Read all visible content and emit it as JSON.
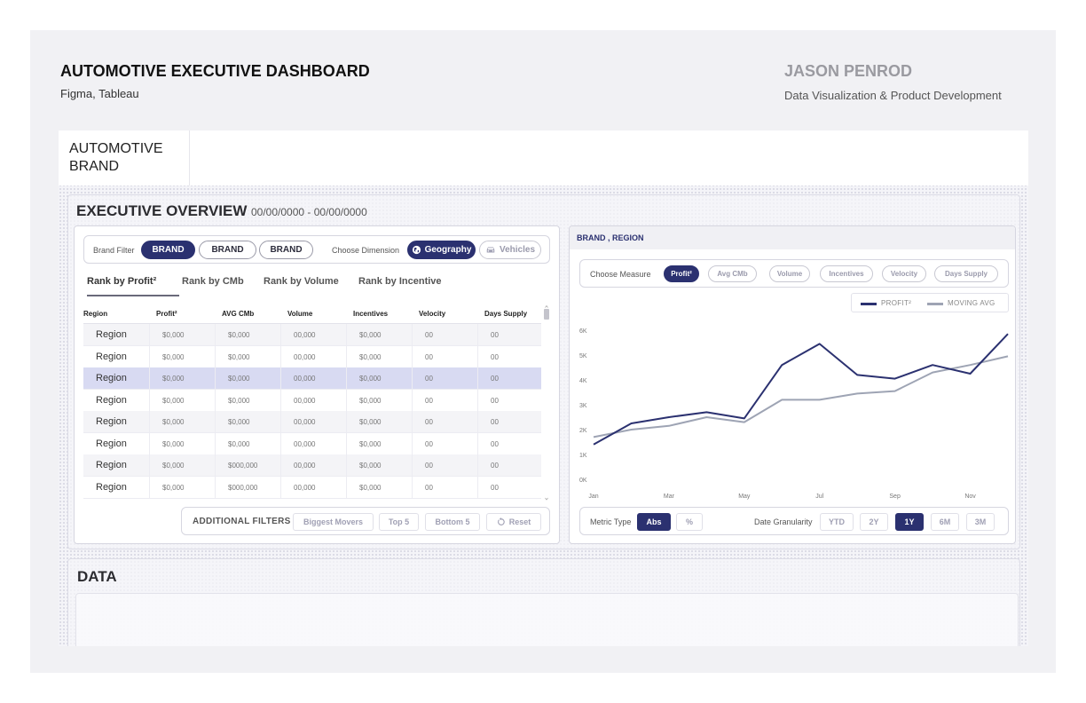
{
  "header": {
    "title": "AUTOMOTIVE EXECUTIVE DASHBOARD",
    "subtitle": "Figma, Tableau",
    "author": "JASON PENROD",
    "author_role": "Data Visualization & Product Development"
  },
  "brand_bar": {
    "label": "AUTOMOTIVE BRAND"
  },
  "overview": {
    "title": "EXECUTIVE OVERVIEW",
    "date_range": "00/00/0000 - 00/00/0000",
    "brand_filter_label": "Brand Filter",
    "brands": [
      "BRAND",
      "BRAND",
      "BRAND"
    ],
    "dimension_label": "Choose Dimension",
    "dimension_geography": "Geography",
    "dimension_vehicles": "Vehicles",
    "rank_tabs": [
      "Rank by Profit²",
      "Rank by CMb",
      "Rank by Volume",
      "Rank by Incentive"
    ],
    "columns": [
      "Region",
      "Profit²",
      "AVG CMb",
      "Volume",
      "Incentives",
      "Velocity",
      "Days Supply"
    ],
    "rows": [
      [
        "Region",
        "$0,000",
        "$0,000",
        "00,000",
        "$0,000",
        "00",
        "00"
      ],
      [
        "Region",
        "$0,000",
        "$0,000",
        "00,000",
        "$0,000",
        "00",
        "00"
      ],
      [
        "Region",
        "$0,000",
        "$0,000",
        "00,000",
        "$0,000",
        "00",
        "00"
      ],
      [
        "Region",
        "$0,000",
        "$0,000",
        "00,000",
        "$0,000",
        "00",
        "00"
      ],
      [
        "Region",
        "$0,000",
        "$0,000",
        "00,000",
        "$0,000",
        "00",
        "00"
      ],
      [
        "Region",
        "$0,000",
        "$0,000",
        "00,000",
        "$0,000",
        "00",
        "00"
      ],
      [
        "Region",
        "$0,000",
        "$000,000",
        "00,000",
        "$0,000",
        "00",
        "00"
      ],
      [
        "Region",
        "$0,000",
        "$000,000",
        "00,000",
        "$0,000",
        "00",
        "00"
      ]
    ],
    "selected_row": 2,
    "additional_filters_label": "ADDITIONAL FILTERS",
    "filter_buttons": {
      "biggest_movers": "Biggest Movers",
      "top5": "Top 5",
      "bottom5": "Bottom 5",
      "reset": "Reset"
    }
  },
  "right_panel": {
    "title": "BRAND , REGION",
    "measure_label": "Choose Measure",
    "measures": [
      "Profit²",
      "Avg CMb",
      "Volume",
      "Incentives",
      "Velocity",
      "Days Supply"
    ],
    "active_measure": 0,
    "metric_type_label": "Metric Type",
    "metric_abs": "Abs",
    "metric_pct": "%",
    "granularity_label": "Date Granularity",
    "granularities": [
      "YTD",
      "2Y",
      "1Y",
      "6M",
      "3M"
    ],
    "active_granularity": 2
  },
  "chart_data": {
    "type": "line",
    "x": [
      "Jan",
      "Feb",
      "Mar",
      "Apr",
      "May",
      "Jun",
      "Jul",
      "Aug",
      "Sep",
      "Oct",
      "Nov",
      "Dec"
    ],
    "x_tick_labels": [
      "Jan",
      "Mar",
      "May",
      "Jul",
      "Sep",
      "Nov"
    ],
    "y_tick_labels": [
      "0K",
      "1K",
      "2K",
      "3K",
      "4K",
      "5K",
      "6K"
    ],
    "ylim": [
      0,
      6000
    ],
    "series": [
      {
        "name": "PROFIT²",
        "color": "#2b3170",
        "values": [
          1400,
          2250,
          2500,
          2700,
          2450,
          4600,
          5450,
          4200,
          4050,
          4600,
          4250,
          5850
        ]
      },
      {
        "name": "MOVING AVG",
        "color": "#9ea4b4",
        "values": [
          1700,
          2000,
          2150,
          2500,
          2300,
          3200,
          3200,
          3450,
          3550,
          4300,
          4600,
          4950
        ]
      }
    ],
    "grid": false,
    "legend": "top-right"
  },
  "data_panel": {
    "title": "DATA"
  }
}
